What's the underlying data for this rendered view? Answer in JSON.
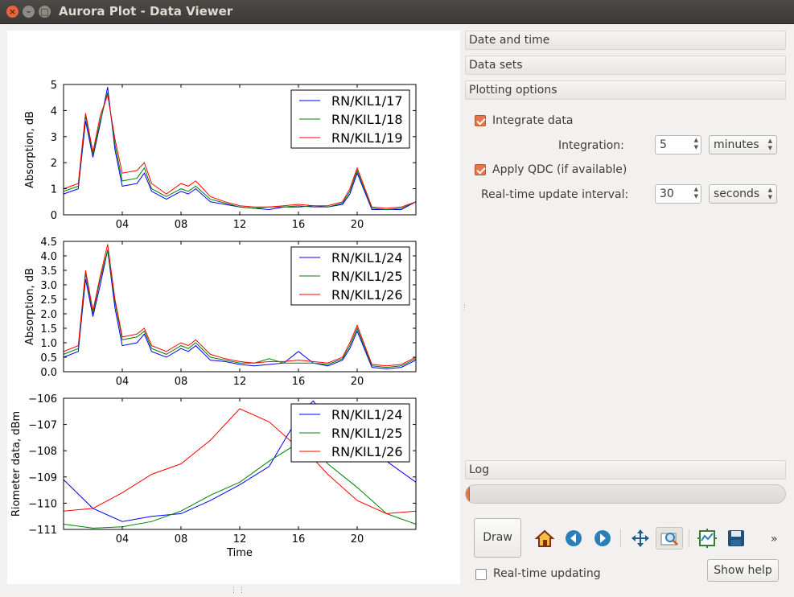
{
  "window": {
    "title": "Aurora Plot - Data Viewer"
  },
  "sections": {
    "date_time": "Date and time",
    "data_sets": "Data sets",
    "plotting_options": "Plotting options",
    "log": "Log"
  },
  "options": {
    "integrate_label": "Integrate data",
    "integrate_checked": true,
    "integration_label": "Integration:",
    "integration_value": "5",
    "integration_unit": "minutes",
    "qdc_label": "Apply QDC (if available)",
    "qdc_checked": true,
    "realtime_interval_label": "Real-time update interval:",
    "realtime_interval_value": "30",
    "realtime_interval_unit": "seconds"
  },
  "progress": {
    "fraction": 0.01
  },
  "toolbar": {
    "draw_label": "Draw",
    "icons": [
      "home-icon",
      "back-icon",
      "forward-icon",
      "pan-icon",
      "zoom-icon",
      "configure-subplots-icon",
      "save-icon"
    ],
    "overflow": "»"
  },
  "bottom": {
    "realtime_label": "Real-time updating",
    "realtime_checked": false,
    "help_label": "Show help"
  },
  "chart_data": [
    {
      "type": "line",
      "ylabel": "Absorption, dB",
      "xlabel": "",
      "xlim": [
        0,
        24
      ],
      "ylim": [
        0,
        5
      ],
      "xticks": [
        "04",
        "08",
        "12",
        "16",
        "20"
      ],
      "yticks": [
        "0",
        "1",
        "2",
        "3",
        "4",
        "5"
      ],
      "legend_position": "top-right",
      "x": [
        0,
        1,
        1.5,
        2,
        2.5,
        3,
        3.5,
        4,
        5,
        5.5,
        6,
        7,
        8,
        8.5,
        9,
        10,
        11,
        12,
        13,
        14,
        15,
        16,
        17,
        18,
        19,
        19.5,
        20,
        21,
        22,
        23,
        24
      ],
      "series": [
        {
          "name": "RN/KIL1/17",
          "color": "#0000ff",
          "values": [
            0.8,
            1.0,
            3.6,
            2.2,
            3.5,
            4.9,
            2.5,
            1.1,
            1.2,
            1.6,
            0.9,
            0.6,
            0.9,
            0.8,
            1.0,
            0.5,
            0.4,
            0.3,
            0.25,
            0.2,
            0.3,
            0.3,
            0.35,
            0.3,
            0.4,
            0.8,
            1.6,
            0.2,
            0.2,
            0.2,
            0.5
          ]
        },
        {
          "name": "RN/KIL1/18",
          "color": "#008000",
          "values": [
            0.9,
            1.1,
            3.8,
            2.3,
            3.6,
            4.7,
            2.7,
            1.3,
            1.4,
            1.8,
            1.0,
            0.7,
            1.0,
            0.9,
            1.1,
            0.6,
            0.45,
            0.3,
            0.25,
            0.3,
            0.3,
            0.35,
            0.3,
            0.3,
            0.45,
            0.9,
            1.7,
            0.25,
            0.2,
            0.25,
            0.5
          ]
        },
        {
          "name": "RN/KIL1/19",
          "color": "#ff0000",
          "values": [
            1.0,
            1.2,
            3.9,
            2.4,
            3.8,
            4.6,
            2.9,
            1.6,
            1.7,
            2.0,
            1.2,
            0.8,
            1.2,
            1.1,
            1.3,
            0.7,
            0.5,
            0.35,
            0.3,
            0.3,
            0.35,
            0.4,
            0.35,
            0.35,
            0.5,
            1.0,
            1.8,
            0.3,
            0.25,
            0.3,
            0.5
          ]
        }
      ]
    },
    {
      "type": "line",
      "ylabel": "Absorption, dB",
      "xlabel": "",
      "xlim": [
        0,
        24
      ],
      "ylim": [
        0,
        4.5
      ],
      "xticks": [
        "04",
        "08",
        "12",
        "16",
        "20"
      ],
      "yticks": [
        "0.0",
        "0.5",
        "1.0",
        "1.5",
        "2.0",
        "2.5",
        "3.0",
        "3.5",
        "4.0",
        "4.5"
      ],
      "legend_position": "top-right",
      "x": [
        0,
        1,
        1.5,
        2,
        2.5,
        3,
        3.5,
        4,
        5,
        5.5,
        6,
        7,
        8,
        8.5,
        9,
        10,
        11,
        12,
        13,
        14,
        15,
        16,
        17,
        18,
        19,
        19.5,
        20,
        21,
        22,
        23,
        24
      ],
      "series": [
        {
          "name": "RN/KIL1/24",
          "color": "#0000ff",
          "values": [
            0.5,
            0.7,
            3.2,
            1.9,
            3.0,
            4.2,
            2.2,
            0.9,
            1.0,
            1.3,
            0.7,
            0.5,
            0.8,
            0.7,
            0.9,
            0.4,
            0.35,
            0.25,
            0.2,
            0.25,
            0.3,
            0.7,
            0.3,
            0.2,
            0.4,
            0.8,
            1.4,
            0.15,
            0.1,
            0.15,
            0.4
          ]
        },
        {
          "name": "RN/KIL1/25",
          "color": "#008000",
          "values": [
            0.6,
            0.8,
            3.4,
            2.0,
            3.2,
            4.2,
            2.4,
            1.1,
            1.2,
            1.4,
            0.8,
            0.6,
            0.9,
            0.8,
            1.0,
            0.5,
            0.4,
            0.3,
            0.3,
            0.45,
            0.3,
            0.3,
            0.3,
            0.25,
            0.45,
            0.9,
            1.5,
            0.2,
            0.15,
            0.2,
            0.45
          ]
        },
        {
          "name": "RN/KIL1/26",
          "color": "#ff0000",
          "values": [
            0.7,
            0.9,
            3.5,
            2.1,
            3.3,
            4.4,
            2.5,
            1.2,
            1.3,
            1.5,
            0.9,
            0.7,
            1.0,
            0.9,
            1.1,
            0.6,
            0.45,
            0.35,
            0.3,
            0.35,
            0.35,
            0.4,
            0.35,
            0.3,
            0.5,
            1.0,
            1.6,
            0.25,
            0.2,
            0.25,
            0.5
          ]
        }
      ]
    },
    {
      "type": "line",
      "ylabel": "Riometer data, dBm",
      "xlabel": "Time",
      "xlim": [
        0,
        24
      ],
      "ylim": [
        -111,
        -106
      ],
      "xticks": [
        "04",
        "08",
        "12",
        "16",
        "20"
      ],
      "yticks": [
        "−111",
        "−110",
        "−109",
        "−108",
        "−107",
        "−106"
      ],
      "legend_position": "top-right",
      "x": [
        0,
        2,
        4,
        6,
        8,
        10,
        12,
        14,
        16,
        17,
        18,
        20,
        22,
        24
      ],
      "series": [
        {
          "name": "RN/KIL1/24",
          "color": "#0000ff",
          "values": [
            -109.1,
            -110.2,
            -110.7,
            -110.5,
            -110.4,
            -109.9,
            -109.3,
            -108.6,
            -106.7,
            -106.1,
            -106.8,
            -107.7,
            -108.4,
            -109.2
          ]
        },
        {
          "name": "RN/KIL1/25",
          "color": "#008000",
          "values": [
            -110.8,
            -110.95,
            -110.9,
            -110.7,
            -110.3,
            -109.7,
            -109.2,
            -108.4,
            -107.7,
            -107.9,
            -108.5,
            -109.4,
            -110.4,
            -110.8
          ]
        },
        {
          "name": "RN/KIL1/26",
          "color": "#ff0000",
          "values": [
            -110.3,
            -110.2,
            -109.6,
            -108.9,
            -108.5,
            -107.6,
            -106.4,
            -106.9,
            -107.9,
            -108.3,
            -108.9,
            -109.9,
            -110.4,
            -110.3
          ]
        }
      ]
    }
  ]
}
